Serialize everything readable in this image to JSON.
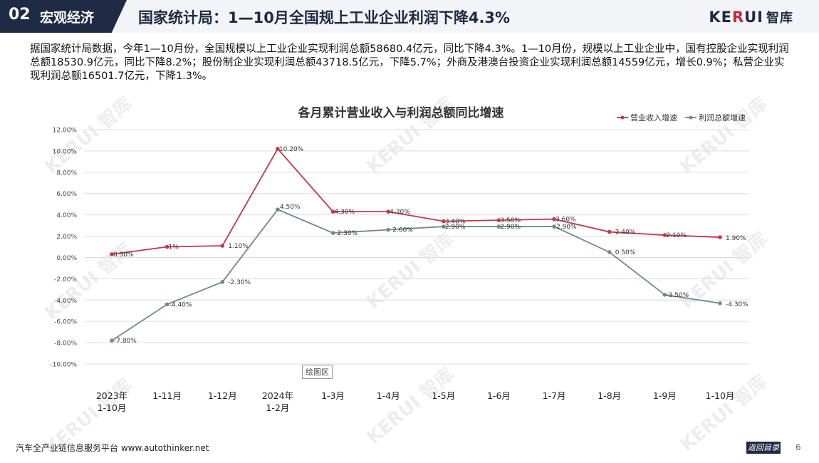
{
  "header": {
    "section_number": "02",
    "section_name": "宏观经济",
    "title": "国家统计局：1—10月全国规上工业企业利润下降4.3%",
    "logo_brand_ke": "KE",
    "logo_brand_r": "R",
    "logo_brand_ui": "UI",
    "logo_cn": "智库"
  },
  "intro": "据国家统计局数据，今年1—10月份，全国规模以上工业企业实现利润总额58680.4亿元，同比下降4.3%。1—10月份，规模以上工业企业中，国有控股企业实现利润总额18530.9亿元，同比下降8.2%；股份制企业实现利润总额43718.5亿元，下降5.7%；外商及港澳台投资企业实现利润总额14559亿元，增长0.9%；私营企业实现利润总额16501.7亿元，下降1.3%。",
  "watermark": "KERUI 智库",
  "plot_tag": "绘图区",
  "chart_data": {
    "type": "line",
    "title": "各月累计营业收入与利润总额同比增速",
    "categories": [
      "2023年\n1-10月",
      "1-11月",
      "1-12月",
      "2024年\n1-2月",
      "1-3月",
      "1-4月",
      "1-5月",
      "1-6月",
      "1-7月",
      "1-8月",
      "1-9月",
      "1-10月"
    ],
    "ylim": [
      -10,
      12
    ],
    "yticks": [
      12,
      10,
      8,
      6,
      4,
      2,
      0,
      -2,
      -4,
      -6,
      -8,
      -10
    ],
    "ytick_labels": [
      "12.00%",
      "10.00%",
      "8.00%",
      "6.00%",
      "4.00%",
      "2.00%",
      "0.00%",
      "-2.00%",
      "-4.00%",
      "-6.00%",
      "-8.00%",
      "-10.00%"
    ],
    "grid": true,
    "legend_position": "top-right",
    "series": [
      {
        "name": "营业收入增速",
        "color": "#c0384b",
        "values": [
          0.3,
          1.0,
          1.1,
          10.2,
          4.3,
          4.3,
          3.4,
          3.5,
          3.6,
          2.4,
          2.1,
          1.9
        ],
        "labels": [
          "0.30%",
          "1%",
          "1.10%",
          "10.20%",
          "4.30%",
          "4.30%",
          "3.40%",
          "3.50%",
          "3.60%",
          "2.40%",
          "2.10%",
          "1.90%"
        ]
      },
      {
        "name": "利润总额增速",
        "color": "#6e8a8f",
        "values": [
          -7.8,
          -4.4,
          -2.3,
          4.5,
          2.3,
          2.6,
          2.9,
          2.9,
          2.9,
          0.5,
          -3.5,
          -4.3
        ],
        "labels": [
          "-7.80%",
          "-4.40%",
          "-2.30%",
          "4.50%",
          "2.30%",
          "2.60%",
          "2.90%",
          "2.90%",
          "2.90%",
          "0.50%",
          "-3.50%",
          "-4.30%"
        ]
      }
    ]
  },
  "footer": {
    "platform": "汽车全产业链信息服务平台 www.autothinker.net",
    "back_button": "返回目录",
    "page_number": "6"
  }
}
